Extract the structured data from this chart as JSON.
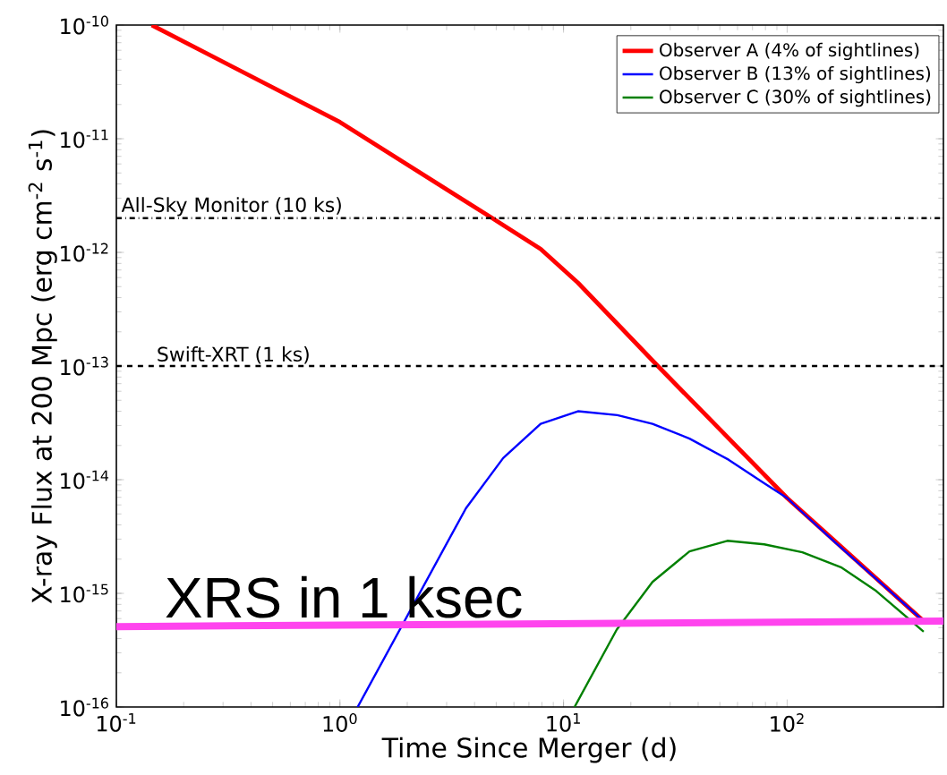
{
  "chart_data": {
    "type": "line",
    "xlabel": "Time Since Merger (d)",
    "ylabel": "X-ray Flux at 200 Mpc (erg cm$^{-2}$ s$^{-1}$)",
    "log": "xy",
    "xlim": [
      0.1,
      500
    ],
    "ylim": [
      1e-16,
      1e-10
    ],
    "xticks": [
      {
        "value": 0.1,
        "label": "10$^{-1}$"
      },
      {
        "value": 1,
        "label": "10$^{0}$"
      },
      {
        "value": 10,
        "label": "10$^{1}$"
      },
      {
        "value": 100,
        "label": "10$^{2}$"
      }
    ],
    "yticks": [
      {
        "value": 1e-16,
        "label": "10$^{-16}$"
      },
      {
        "value": 1e-15,
        "label": "10$^{-15}$"
      },
      {
        "value": 1e-14,
        "label": "10$^{-14}$"
      },
      {
        "value": 1e-13,
        "label": "10$^{-13}$"
      },
      {
        "value": 1e-12,
        "label": "10$^{-12}$"
      },
      {
        "value": 1e-11,
        "label": "10$^{-11}$"
      },
      {
        "value": 1e-10,
        "label": "10$^{-10}$"
      }
    ],
    "legend": "top right",
    "grid": false,
    "marker": "none",
    "line_style": "solid",
    "series": [
      {
        "name": "Observer A (4% of sightlines)",
        "color": "#ff0000",
        "x": [
          0.144,
          1.0,
          4.8,
          7.9,
          11.6,
          26.4,
          100,
          408
        ],
        "values": [
          1e-10,
          1.4e-11,
          2e-12,
          1.07e-12,
          5.4e-13,
          1e-13,
          6.9e-15,
          5.7e-16
        ]
      },
      {
        "name": "Observer B (13% of sightlines)",
        "color": "#0000ff",
        "x": [
          1.2,
          3.66,
          5.37,
          7.9,
          11.6,
          17.4,
          25,
          36.6,
          54.7,
          79,
          100,
          114,
          164,
          408
        ],
        "values": [
          1e-16,
          5.6e-15,
          1.55e-14,
          3.1e-14,
          4e-14,
          3.7e-14,
          3.1e-14,
          2.3e-14,
          1.5e-14,
          9.3e-15,
          6.9e-15,
          5.4e-15,
          2.8e-15,
          5.7e-16
        ]
      },
      {
        "name": "Observer C (30% of sightlines)",
        "color": "#008000",
        "x": [
          11.2,
          17.3,
          25,
          36.6,
          54,
          79,
          117,
          174,
          250,
          408
        ],
        "values": [
          1e-16,
          4.8e-16,
          1.26e-15,
          2.34e-15,
          2.9e-15,
          2.7e-15,
          2.3e-15,
          1.7e-15,
          1.05e-15,
          4.6e-16
        ]
      },
      {
        "color": "#ff44ee",
        "x": [
          0.1,
          500
        ],
        "values": [
          5.1e-16,
          5.7e-16
        ]
      }
    ],
    "ref_lines": [
      {
        "axis": "y",
        "value": 2e-12,
        "label": "All-Sky Monitor (10 ks)",
        "color": "#000000",
        "line_style": "dashdotted"
      },
      {
        "axis": "y",
        "value": 1e-13,
        "label": "Swift-XRT (1 ks)",
        "color": "#000000",
        "line_style": "dashed"
      }
    ],
    "annotations": [
      "XRS in 1 ksec"
    ]
  }
}
